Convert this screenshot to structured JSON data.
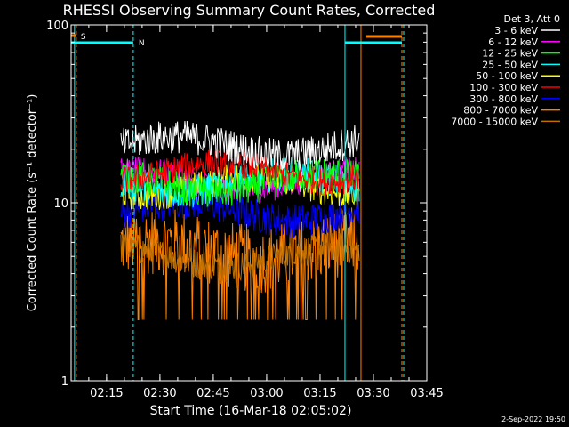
{
  "chart_data": {
    "type": "line",
    "title": "RHESSI Observing Summary Count Rates, Corrected",
    "xlabel": "Start Time (16-Mar-18 02:05:02)",
    "ylabel": "Corrected Count Rate (s⁻¹ detector⁻¹)",
    "y_scale": "log",
    "ylim": [
      1,
      100
    ],
    "xlim": [
      "02:05:02",
      "03:45:00"
    ],
    "x_ticks": [
      "02:15",
      "02:30",
      "02:45",
      "03:00",
      "03:15",
      "03:30",
      "03:45"
    ],
    "y_ticks": [
      {
        "value": 1,
        "label": "1"
      },
      {
        "value": 10,
        "label": "10"
      },
      {
        "value": 100,
        "label": "100"
      }
    ],
    "detector_label": "Det 3, Att 0",
    "data_window": {
      "start": "02:19:00",
      "end": "03:26:00"
    },
    "series": [
      {
        "name": "3 - 6 keV",
        "color": "#ffffff",
        "level": 21,
        "spread": 0.22
      },
      {
        "name": "6 - 12 keV",
        "color": "#ff00ff",
        "level": 13.5,
        "spread": 0.18
      },
      {
        "name": "12 - 25 keV",
        "color": "#00ff00",
        "level": 13,
        "spread": 0.22
      },
      {
        "name": "25 - 50 keV",
        "color": "#00ffff",
        "level": 13,
        "spread": 0.22
      },
      {
        "name": "50 - 100 keV",
        "color": "#ffff00",
        "level": 12.5,
        "spread": 0.2
      },
      {
        "name": "100 - 300 keV",
        "color": "#ff0000",
        "level": 15,
        "spread": 0.18
      },
      {
        "name": "300 - 800 keV",
        "color": "#0000ff",
        "level": 9,
        "spread": 0.22
      },
      {
        "name": "800 - 7000 keV",
        "color": "#ff8000",
        "level": 5.5,
        "spread": 0.45
      },
      {
        "name": "7000 - 15000 keV",
        "color": "#c07000",
        "level": 5,
        "spread": 0.2
      }
    ],
    "flags": [
      {
        "label": "S",
        "color": "#ff8000",
        "start": "02:05:02",
        "end": "02:06:30"
      },
      {
        "label": "N",
        "color": "#00ffff",
        "start": "02:05:02",
        "end": "02:22:30"
      },
      {
        "label": "",
        "color": "#00ffff",
        "start": "03:22:00",
        "end": "03:38:00"
      },
      {
        "label": "",
        "color": "#ff8000",
        "start": "03:28:00",
        "end": "03:38:00"
      }
    ],
    "markers": [
      {
        "time": "02:06:00",
        "color": "#00ffff",
        "style": "solid"
      },
      {
        "time": "02:06:30",
        "color": "#ff8000",
        "style": "dashed"
      },
      {
        "time": "02:22:30",
        "color": "#00ffff",
        "style": "dashed"
      },
      {
        "time": "03:22:00",
        "color": "#00ffff",
        "style": "solid"
      },
      {
        "time": "03:26:30",
        "color": "#ff8000",
        "style": "solid"
      },
      {
        "time": "03:38:00",
        "color": "#ff8000",
        "style": "dashed"
      },
      {
        "time": "03:38:30",
        "color": "#00ffff",
        "style": "dashed"
      }
    ],
    "grid": false,
    "legend": "top-right, outside plot"
  },
  "footer": {
    "timestamp": "2-Sep-2022 19:50"
  }
}
